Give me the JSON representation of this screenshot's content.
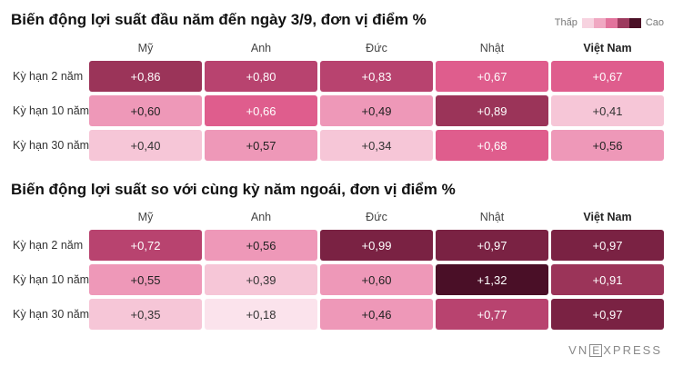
{
  "legend": {
    "low_label": "Thấp",
    "high_label": "Cao",
    "swatches": [
      "#f7d3e0",
      "#f0a8c2",
      "#e2739c",
      "#9d3a5e",
      "#4a1026"
    ]
  },
  "logo_text": {
    "a": "VN",
    "e": "E",
    "b": "XPRESS"
  },
  "chart_data": [
    {
      "type": "heatmap",
      "title": "Biến động lợi suất đầu năm đến ngày 3/9, đơn vị điểm %",
      "columns": [
        "Mỹ",
        "Anh",
        "Đức",
        "Nhật",
        "Việt Nam"
      ],
      "rows": [
        "Kỳ hạn 2 năm",
        "Kỳ hạn 10 năm",
        "Kỳ hạn 30 năm"
      ],
      "labels": [
        [
          "+0,86",
          "+0,80",
          "+0,83",
          "+0,67",
          "+0,67"
        ],
        [
          "+0,60",
          "+0,66",
          "+0,49",
          "+0,89",
          "+0,41"
        ],
        [
          "+0,40",
          "+0,57",
          "+0,34",
          "+0,68",
          "+0,56"
        ]
      ],
      "values": [
        [
          0.86,
          0.8,
          0.83,
          0.67,
          0.67
        ],
        [
          0.6,
          0.66,
          0.49,
          0.89,
          0.41
        ],
        [
          0.4,
          0.57,
          0.34,
          0.68,
          0.56
        ]
      ]
    },
    {
      "type": "heatmap",
      "title": "Biến động lợi suất so với cùng kỳ năm ngoái, đơn vị điểm %",
      "columns": [
        "Mỹ",
        "Anh",
        "Đức",
        "Nhật",
        "Việt Nam"
      ],
      "rows": [
        "Kỳ hạn 2 năm",
        "Kỳ hạn 10 năm",
        "Kỳ hạn 30 năm"
      ],
      "labels": [
        [
          "+0,72",
          "+0,56",
          "+0,99",
          "+0,97",
          "+0,97"
        ],
        [
          "+0,55",
          "+0,39",
          "+0,60",
          "+1,32",
          "+0,91"
        ],
        [
          "+0,35",
          "+0,18",
          "+0,46",
          "+0,77",
          "+0,97"
        ]
      ],
      "values": [
        [
          0.72,
          0.56,
          0.99,
          0.97,
          0.97
        ],
        [
          0.55,
          0.39,
          0.6,
          1.32,
          0.91
        ],
        [
          0.35,
          0.18,
          0.46,
          0.77,
          0.97
        ]
      ]
    }
  ]
}
